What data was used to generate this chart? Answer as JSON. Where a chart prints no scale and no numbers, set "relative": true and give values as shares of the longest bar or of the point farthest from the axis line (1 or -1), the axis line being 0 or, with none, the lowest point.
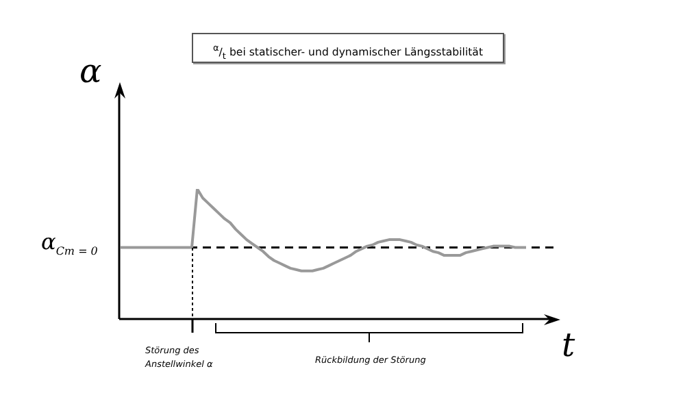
{
  "chart_data": {
    "type": "line",
    "title": "$^{α}$/$_{t}$ bei statischer- und dynamischer Längsstabilität",
    "xlabel": "t",
    "ylabel": "α",
    "relative": true,
    "grid": false,
    "legend": false,
    "marker": "none",
    "line_style": "solid",
    "categories": [
      null,
      null,
      null,
      null,
      null,
      null,
      null,
      null,
      null,
      null,
      null,
      null,
      null,
      null,
      null,
      null,
      null,
      null,
      null,
      null,
      null,
      null,
      null,
      null,
      null,
      null,
      null,
      null,
      null,
      null,
      null,
      null,
      null,
      null,
      null,
      null,
      null,
      null,
      null,
      null,
      null,
      null,
      null,
      null,
      null,
      null,
      null,
      null,
      null,
      null,
      null,
      null,
      null,
      null,
      null,
      null,
      null,
      null,
      null,
      null,
      null,
      null,
      null,
      null,
      null,
      null,
      null,
      null,
      null,
      null,
      null,
      null,
      null,
      null,
      null,
      null,
      null,
      null,
      null,
      null
    ],
    "series": [
      {
        "color": "#999999",
        "values": [
          0.55,
          0.55,
          0.55,
          0.55,
          0.55,
          0.55,
          0.55,
          0.55,
          0.55,
          0.55,
          0.55,
          0.55,
          0.55,
          0.55,
          1,
          0.93,
          0.89,
          0.85,
          0.81,
          0.77,
          0.74,
          0.69,
          0.65,
          0.61,
          0.58,
          0.55,
          0.52,
          0.48,
          0.45,
          0.43,
          0.41,
          0.39,
          0.38,
          0.37,
          0.37,
          0.37,
          0.38,
          0.39,
          0.41,
          0.43,
          0.45,
          0.47,
          0.49,
          0.52,
          0.54,
          0.56,
          0.57,
          0.59,
          0.6,
          0.61,
          0.61,
          0.61,
          0.6,
          0.59,
          0.57,
          0.56,
          0.54,
          0.52,
          0.51,
          0.49,
          0.49,
          0.49,
          0.49,
          0.51,
          0.52,
          0.53,
          0.54,
          0.55,
          0.56,
          0.56,
          0.56,
          0.56,
          0.55,
          0.55,
          0.55,
          null,
          null,
          null,
          null,
          null
        ]
      }
    ],
    "ref_lines": [
      {
        "axis": "y",
        "value": 0.55,
        "color": "#000000",
        "line_style": "dashed"
      }
    ],
    "annotations": [
      "Störung des Anstellwinkel α",
      "Rückbildung der Störung",
      "α$_{Cm = 0}$"
    ]
  }
}
